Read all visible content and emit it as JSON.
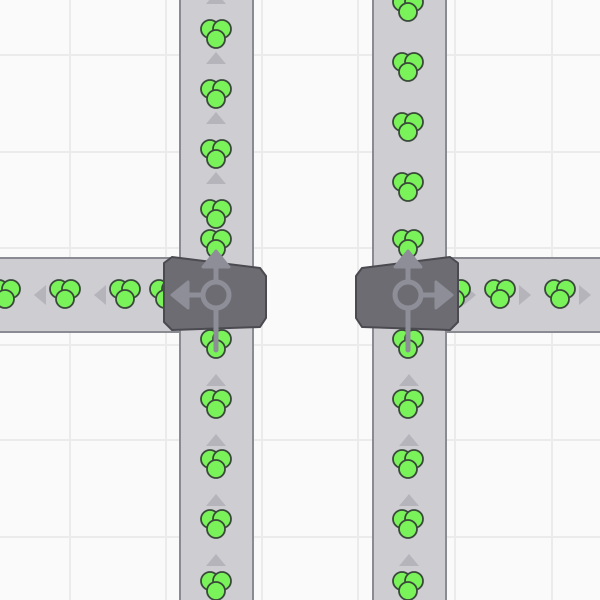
{
  "colors": {
    "background": "#fafafa",
    "grid": "#ebebeb",
    "belt": "#cdcdd2",
    "belt_edge": "#8a8a92",
    "belt_arrow": "#b4b4ba",
    "item_fill": "#7af25a",
    "item_stroke": "#3a4a3a",
    "splitter_body": "#6c6c72",
    "splitter_edge": "#4a4a50",
    "splitter_symbol": "#8e8e98"
  },
  "buildings": [
    {
      "type": "splitter",
      "outputs": [
        "up",
        "left"
      ],
      "icon": "splitter-icon"
    },
    {
      "type": "splitter",
      "outputs": [
        "up",
        "right"
      ],
      "icon": "splitter-icon"
    }
  ],
  "items": {
    "shape": "three-circle-cluster",
    "color": "green"
  }
}
